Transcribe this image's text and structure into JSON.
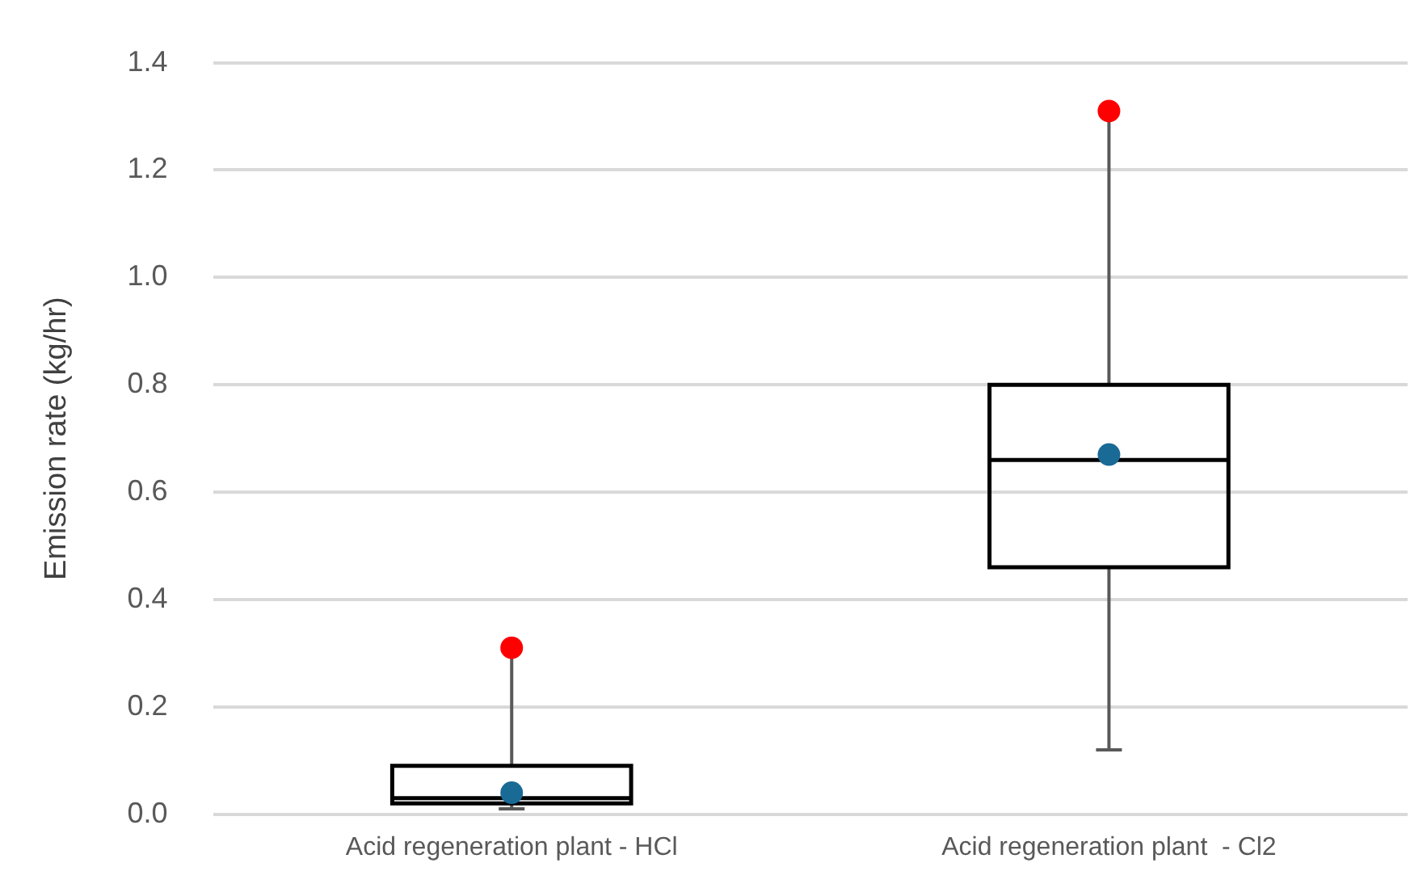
{
  "chart_data": {
    "type": "box",
    "ylabel": "Emission rate (kg/hr)",
    "categories": [
      "Acid regeneration plant - HCl",
      "Acid regeneration plant  - Cl2"
    ],
    "series": [
      {
        "type": "box",
        "color": "#000000",
        "boxes": [
          {
            "low": 0.01,
            "q1": 0.02,
            "median": 0.03,
            "q3": 0.09,
            "high": 0.31,
            "mean": 0.04
          },
          {
            "low": 0.12,
            "q1": 0.46,
            "median": 0.66,
            "q3": 0.8,
            "high": 1.31,
            "mean": 0.67
          }
        ]
      },
      {
        "type": "scatter",
        "color": "#ff0000",
        "x": [
          "Acid regeneration plant - HCl",
          "Acid regeneration plant  - Cl2"
        ],
        "values": [
          0.31,
          1.31
        ]
      }
    ],
    "ylim": [
      0,
      1.4
    ],
    "yticks": [
      {
        "value": 0,
        "label": "0.0"
      },
      0.2,
      0.4,
      0.6,
      0.8,
      {
        "value": 1,
        "label": "1.0"
      },
      1.2,
      1.4
    ],
    "grid": "y",
    "marker": "circle",
    "legend": false
  }
}
